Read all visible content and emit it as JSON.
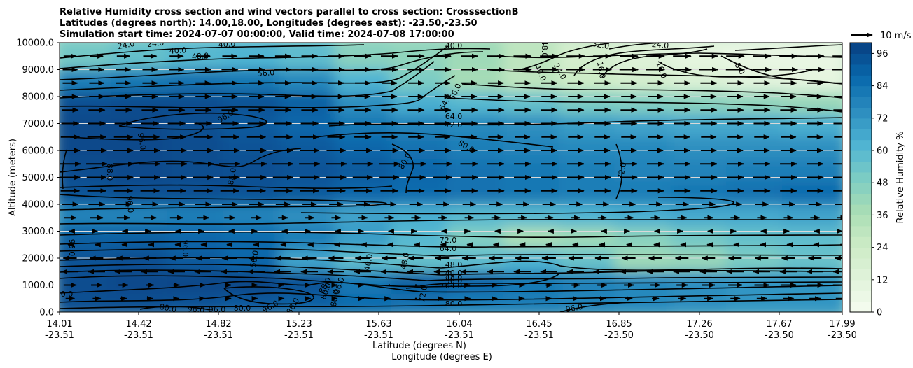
{
  "chart_data": {
    "type": "contourf",
    "title_lines": [
      "Relative Humidity cross section and wind vectors parallel to cross section: CrosssectionB",
      "Latitudes (degrees north): 14.00,18.00, Longitudes (degrees east): -23.50,-23.50",
      "Simulation start time: 2024-07-07 00:00:00, Valid time: 2024-07-08 17:00:00"
    ],
    "xlabel": "Latitude (degrees N)",
    "xlabel2": "Longitude (degrees E)",
    "ylabel": "Altitude (meters)",
    "ylim": [
      0,
      10000
    ],
    "yticks": [
      "0.0",
      "1000.0",
      "2000.0",
      "3000.0",
      "4000.0",
      "5000.0",
      "6000.0",
      "7000.0",
      "8000.0",
      "9000.0",
      "10000.0"
    ],
    "xticks": [
      {
        "lat": "14.01",
        "lon": "-23.51"
      },
      {
        "lat": "14.42",
        "lon": "-23.51"
      },
      {
        "lat": "14.82",
        "lon": "-23.51"
      },
      {
        "lat": "15.23",
        "lon": "-23.51"
      },
      {
        "lat": "15.63",
        "lon": "-23.51"
      },
      {
        "lat": "16.04",
        "lon": "-23.51"
      },
      {
        "lat": "16.45",
        "lon": "-23.51"
      },
      {
        "lat": "16.85",
        "lon": "-23.50"
      },
      {
        "lat": "17.26",
        "lon": "-23.50"
      },
      {
        "lat": "17.67",
        "lon": "-23.50"
      },
      {
        "lat": "17.99",
        "lon": "-23.50"
      }
    ],
    "colorbar": {
      "label": "Relative Humidity %",
      "ticks": [
        "0",
        "12",
        "24",
        "36",
        "48",
        "60",
        "72",
        "84",
        "96"
      ],
      "min": 0,
      "max": 100,
      "levels": 25,
      "colormap": "GnBu"
    },
    "quiver_key": "10 m/s",
    "contour_labels": [
      "24.0",
      "24.0",
      "40.0",
      "48.0",
      "40.0",
      "56.0",
      "40.0",
      "48.0",
      "40.0",
      "32.0",
      "24.0",
      "16.0",
      "24.0",
      "16.0",
      "8.0",
      "56.0",
      "64.0",
      "64.0",
      "72.0",
      "80.0",
      "96.0",
      "96.0",
      "88.0",
      "88.0",
      "96.0",
      "80.0",
      "72.0",
      "72.0",
      "64.0",
      "96.0",
      "96.0",
      "56.0",
      "48.0",
      "40.0",
      "48.0",
      "40.0",
      "48.0",
      "56.0",
      "64.0",
      "72.0",
      "80.0",
      "96.0",
      "80.0",
      "96.0",
      "96.0",
      "96.0",
      "88.0",
      "80.0",
      "80.0",
      "80.0",
      "88.0",
      "96.0",
      "80.0"
    ],
    "rh_field": [
      [
        95,
        95,
        94,
        92,
        90,
        86,
        84,
        80,
        80,
        78,
        76,
        74,
        72,
        72
      ],
      [
        96,
        97,
        98,
        98,
        94,
        82,
        90,
        88,
        82,
        78,
        76,
        74,
        72,
        72
      ],
      [
        94,
        95,
        92,
        88,
        68,
        58,
        56,
        58,
        62,
        55,
        40,
        42,
        50,
        55
      ],
      [
        90,
        90,
        88,
        86,
        80,
        70,
        60,
        48,
        36,
        40,
        46,
        52,
        56,
        58
      ],
      [
        78,
        78,
        80,
        78,
        74,
        68,
        64,
        60,
        60,
        62,
        64,
        66,
        66,
        68
      ],
      [
        94,
        95,
        95,
        94,
        92,
        88,
        86,
        84,
        82,
        80,
        80,
        82,
        84,
        86
      ],
      [
        96,
        97,
        96,
        95,
        94,
        92,
        88,
        84,
        82,
        80,
        78,
        78,
        80,
        80
      ],
      [
        97,
        97,
        96,
        94,
        92,
        88,
        84,
        80,
        78,
        76,
        76,
        74,
        74,
        74
      ],
      [
        97,
        97,
        95,
        92,
        88,
        82,
        78,
        76,
        74,
        70,
        68,
        66,
        66,
        64
      ],
      [
        95,
        96,
        96,
        94,
        90,
        74,
        64,
        60,
        56,
        50,
        48,
        46,
        44,
        42
      ],
      [
        80,
        82,
        84,
        82,
        76,
        62,
        50,
        38,
        30,
        24,
        20,
        16,
        12,
        10
      ],
      [
        52,
        56,
        60,
        62,
        58,
        46,
        44,
        40,
        30,
        20,
        14,
        10,
        8,
        8
      ]
    ],
    "wind_u_ms": [
      [
        0,
        0,
        0,
        0,
        0,
        0,
        0,
        0,
        0,
        0,
        0,
        0,
        0,
        0
      ],
      [
        8,
        6,
        4,
        2,
        2,
        2,
        1,
        2,
        4,
        6,
        6,
        8,
        9,
        10
      ],
      [
        -8,
        -8,
        -8,
        -9,
        -9,
        -9,
        -9,
        -8,
        -8,
        -8,
        -8,
        -8,
        -8,
        -8
      ],
      [
        0,
        1,
        1,
        -1,
        1,
        1,
        1,
        0,
        -1,
        -1,
        1,
        1,
        1,
        1
      ],
      [
        7,
        7,
        7,
        6,
        5,
        5,
        5,
        5,
        5,
        5,
        5,
        5,
        5,
        5
      ],
      [
        9,
        9,
        9,
        9,
        9,
        9,
        8,
        8,
        8,
        8,
        8,
        8,
        8,
        8
      ],
      [
        10,
        10,
        10,
        10,
        10,
        10,
        10,
        8,
        8,
        8,
        8,
        8,
        8,
        8
      ],
      [
        9,
        9,
        9,
        9,
        9,
        8,
        7,
        7,
        7,
        7,
        7,
        7,
        7,
        7
      ],
      [
        8,
        8,
        8,
        8,
        8,
        8,
        8,
        8,
        8,
        8,
        8,
        8,
        8,
        8
      ],
      [
        7,
        7,
        7,
        7,
        7,
        7,
        7,
        7,
        7,
        7,
        7,
        7,
        7,
        7
      ],
      [
        7,
        7,
        7,
        8,
        8,
        8,
        8,
        8,
        9,
        9,
        9,
        9,
        9,
        9
      ],
      [
        5,
        5,
        6,
        6,
        7,
        8,
        8,
        8,
        8,
        8,
        8,
        8,
        8,
        8
      ]
    ]
  }
}
